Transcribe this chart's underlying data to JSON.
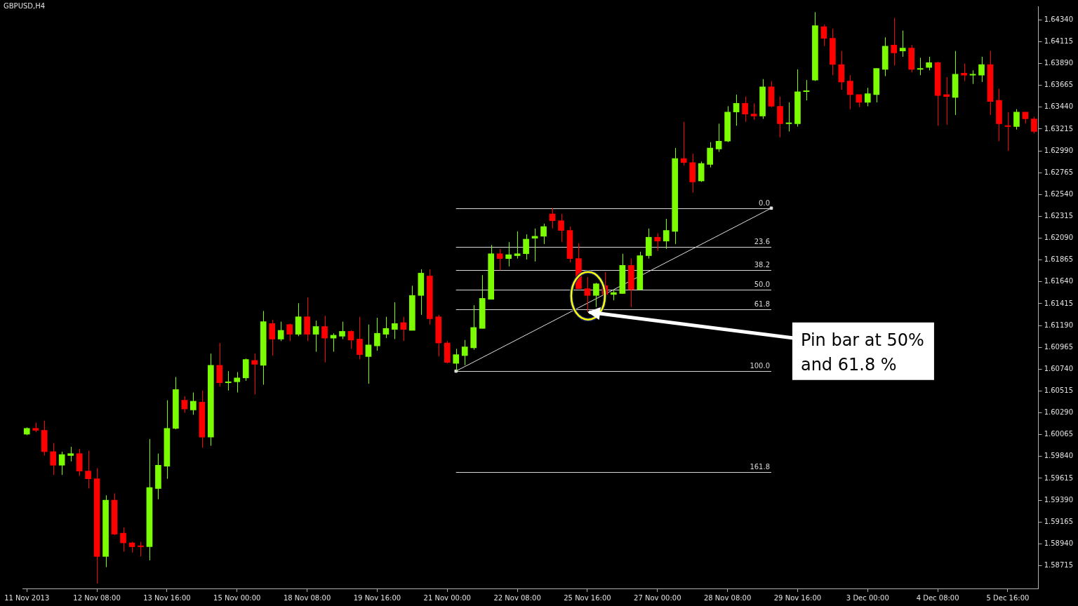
{
  "chart_data": {
    "type": "candlestick",
    "title": "GBPUSD,H4",
    "categories": [
      "11 Nov 2013",
      null,
      null,
      null,
      null,
      null,
      null,
      null,
      "12 Nov 08:00",
      null,
      null,
      null,
      null,
      null,
      null,
      null,
      "13 Nov 16:00",
      null,
      null,
      null,
      null,
      null,
      null,
      null,
      "15 Nov 00:00",
      null,
      null,
      null,
      null,
      null,
      null,
      null,
      "18 Nov 08:00",
      null,
      null,
      null,
      null,
      null,
      null,
      null,
      "19 Nov 16:00",
      null,
      null,
      null,
      null,
      null,
      null,
      null,
      "21 Nov 00:00",
      null,
      null,
      null,
      null,
      null,
      null,
      null,
      "22 Nov 08:00",
      null,
      null,
      null,
      null,
      null,
      null,
      null,
      "25 Nov 16:00",
      null,
      null,
      null,
      null,
      null,
      null,
      null,
      "27 Nov 00:00",
      null,
      null,
      null,
      null,
      null,
      null,
      null,
      "28 Nov 08:00",
      null,
      null,
      null,
      null,
      null,
      null,
      null,
      "29 Nov 16:00",
      null,
      null,
      null,
      null,
      null,
      null,
      null,
      "3 Dec 00:00",
      null,
      null,
      null,
      null,
      null,
      null,
      null,
      "4 Dec 08:00",
      null,
      null,
      null,
      null,
      null,
      null,
      null,
      "5 Dec 16:00",
      null,
      null,
      null
    ],
    "ohlc": [
      [
        1.6007,
        1.6014,
        1.6006,
        1.6013
      ],
      [
        1.6013,
        1.6019,
        1.6009,
        1.6011
      ],
      [
        1.6011,
        1.6021,
        1.5985,
        1.5989
      ],
      [
        1.5989,
        1.5998,
        1.5965,
        1.5975
      ],
      [
        1.5975,
        1.5989,
        1.5965,
        1.5986
      ],
      [
        1.5985,
        1.5994,
        1.5979,
        1.5987
      ],
      [
        1.5987,
        1.5992,
        1.5964,
        1.5969
      ],
      [
        1.5969,
        1.599,
        1.5951,
        1.5961
      ],
      [
        1.5961,
        1.5972,
        1.5853,
        1.5881
      ],
      [
        1.5881,
        1.5944,
        1.587,
        1.5939
      ],
      [
        1.5939,
        1.5946,
        1.5903,
        1.5904
      ],
      [
        1.5905,
        1.5911,
        1.5886,
        1.5895
      ],
      [
        1.5895,
        1.5896,
        1.5885,
        1.5891
      ],
      [
        1.5892,
        1.5896,
        1.5881,
        1.5891
      ],
      [
        1.5891,
        1.6002,
        1.5877,
        1.5952
      ],
      [
        1.5951,
        1.5987,
        1.594,
        1.5975
      ],
      [
        1.5974,
        1.6042,
        1.5961,
        1.6013
      ],
      [
        1.6013,
        1.6066,
        1.6012,
        1.6053
      ],
      [
        1.6042,
        1.6046,
        1.6029,
        1.6033
      ],
      [
        1.6032,
        1.605,
        1.6027,
        1.6041
      ],
      [
        1.604,
        1.6052,
        1.5993,
        1.6004
      ],
      [
        1.6004,
        1.609,
        1.5995,
        1.6078
      ],
      [
        1.6078,
        1.6101,
        1.6056,
        1.606
      ],
      [
        1.606,
        1.6072,
        1.6052,
        1.6061
      ],
      [
        1.6061,
        1.6071,
        1.605,
        1.6065
      ],
      [
        1.6065,
        1.6085,
        1.6062,
        1.6084
      ],
      [
        1.6083,
        1.609,
        1.6048,
        1.6079
      ],
      [
        1.6078,
        1.6134,
        1.6058,
        1.6123
      ],
      [
        1.6121,
        1.6125,
        1.6088,
        1.6105
      ],
      [
        1.6105,
        1.6123,
        1.6103,
        1.6114
      ],
      [
        1.612,
        1.6121,
        1.6103,
        1.611
      ],
      [
        1.611,
        1.6142,
        1.6108,
        1.6128
      ],
      [
        1.6128,
        1.6148,
        1.6103,
        1.611
      ],
      [
        1.611,
        1.6124,
        1.6092,
        1.6118
      ],
      [
        1.6118,
        1.6129,
        1.6081,
        1.6106
      ],
      [
        1.6106,
        1.6111,
        1.6092,
        1.6109
      ],
      [
        1.6108,
        1.6123,
        1.6105,
        1.6113
      ],
      [
        1.6113,
        1.6114,
        1.6095,
        1.6104
      ],
      [
        1.6105,
        1.6128,
        1.6084,
        1.6089
      ],
      [
        1.6087,
        1.612,
        1.6059,
        1.6099
      ],
      [
        1.6098,
        1.6127,
        1.6093,
        1.6111
      ],
      [
        1.611,
        1.6128,
        1.6106,
        1.6116
      ],
      [
        1.6115,
        1.6143,
        1.6105,
        1.6121
      ],
      [
        1.6122,
        1.6128,
        1.6103,
        1.6115
      ],
      [
        1.6114,
        1.616,
        1.6114,
        1.615
      ],
      [
        1.615,
        1.6177,
        1.613,
        1.6173
      ],
      [
        1.617,
        1.6177,
        1.612,
        1.6126
      ],
      [
        1.6128,
        1.613,
        1.6087,
        1.6101
      ],
      [
        1.6101,
        1.6103,
        1.608,
        1.6081
      ],
      [
        1.608,
        1.6095,
        1.6072,
        1.6089
      ],
      [
        1.6088,
        1.6104,
        1.6078,
        1.6097
      ],
      [
        1.6096,
        1.614,
        1.6094,
        1.6117
      ],
      [
        1.6116,
        1.6171,
        1.6116,
        1.6147
      ],
      [
        1.6146,
        1.6202,
        1.6146,
        1.6193
      ],
      [
        1.6193,
        1.6198,
        1.6176,
        1.6188
      ],
      [
        1.6188,
        1.6205,
        1.618,
        1.6192
      ],
      [
        1.6191,
        1.6216,
        1.6188,
        1.6193
      ],
      [
        1.6193,
        1.6213,
        1.6187,
        1.6208
      ],
      [
        1.6209,
        1.6219,
        1.6185,
        1.6211
      ],
      [
        1.6211,
        1.6224,
        1.6203,
        1.6221
      ],
      [
        1.6234,
        1.624,
        1.6219,
        1.6227
      ],
      [
        1.6227,
        1.6234,
        1.6205,
        1.6217
      ],
      [
        1.6217,
        1.6221,
        1.6184,
        1.6188
      ],
      [
        1.6188,
        1.6204,
        1.6157,
        1.6157
      ],
      [
        1.6157,
        1.6169,
        1.6133,
        1.615
      ],
      [
        1.615,
        1.6163,
        1.6138,
        1.6162
      ],
      [
        1.616,
        1.6174,
        1.6151,
        1.6151
      ],
      [
        1.6151,
        1.6156,
        1.6145,
        1.6153
      ],
      [
        1.6152,
        1.6193,
        1.6152,
        1.6181
      ],
      [
        1.6181,
        1.6188,
        1.6138,
        1.6156
      ],
      [
        1.6156,
        1.6195,
        1.6156,
        1.6191
      ],
      [
        1.6191,
        1.6219,
        1.6188,
        1.621
      ],
      [
        1.621,
        1.6214,
        1.6196,
        1.6206
      ],
      [
        1.6206,
        1.6229,
        1.6198,
        1.6217
      ],
      [
        1.6216,
        1.6302,
        1.6203,
        1.6291
      ],
      [
        1.6291,
        1.6329,
        1.6284,
        1.6287
      ],
      [
        1.6287,
        1.6296,
        1.6256,
        1.6267
      ],
      [
        1.6268,
        1.6288,
        1.6267,
        1.6286
      ],
      [
        1.6285,
        1.6308,
        1.6282,
        1.6302
      ],
      [
        1.6301,
        1.6327,
        1.6298,
        1.6309
      ],
      [
        1.6309,
        1.6345,
        1.6308,
        1.6339
      ],
      [
        1.6339,
        1.6357,
        1.6325,
        1.6348
      ],
      [
        1.6348,
        1.6355,
        1.6329,
        1.6337
      ],
      [
        1.6337,
        1.6348,
        1.6331,
        1.6335
      ],
      [
        1.6335,
        1.6373,
        1.6332,
        1.6365
      ],
      [
        1.6365,
        1.6371,
        1.6344,
        1.6345
      ],
      [
        1.6345,
        1.6355,
        1.6313,
        1.6327
      ],
      [
        1.6327,
        1.6349,
        1.6319,
        1.6328
      ],
      [
        1.6327,
        1.6383,
        1.6324,
        1.636
      ],
      [
        1.636,
        1.6372,
        1.6351,
        1.6361
      ],
      [
        1.6372,
        1.6442,
        1.6371,
        1.6428
      ],
      [
        1.6427,
        1.6429,
        1.6407,
        1.6415
      ],
      [
        1.6415,
        1.6425,
        1.6377,
        1.6388
      ],
      [
        1.6388,
        1.6402,
        1.6362,
        1.637
      ],
      [
        1.6371,
        1.6377,
        1.6342,
        1.6357
      ],
      [
        1.6357,
        1.6357,
        1.6344,
        1.6349
      ],
      [
        1.6349,
        1.6364,
        1.6345,
        1.6358
      ],
      [
        1.6357,
        1.6384,
        1.6349,
        1.6384
      ],
      [
        1.6383,
        1.6416,
        1.6376,
        1.6407
      ],
      [
        1.6408,
        1.6436,
        1.6387,
        1.64
      ],
      [
        1.6402,
        1.6423,
        1.6396,
        1.6405
      ],
      [
        1.6405,
        1.6408,
        1.638,
        1.6383
      ],
      [
        1.6383,
        1.6395,
        1.6377,
        1.6384
      ],
      [
        1.6385,
        1.6396,
        1.6382,
        1.639
      ],
      [
        1.639,
        1.6391,
        1.6325,
        1.6356
      ],
      [
        1.6357,
        1.6375,
        1.6326,
        1.6355
      ],
      [
        1.6354,
        1.6402,
        1.6336,
        1.6378
      ],
      [
        1.6379,
        1.6389,
        1.6371,
        1.6377
      ],
      [
        1.6377,
        1.6382,
        1.6368,
        1.6378
      ],
      [
        1.6377,
        1.6396,
        1.637,
        1.6388
      ],
      [
        1.6388,
        1.6402,
        1.6336,
        1.635
      ],
      [
        1.6351,
        1.6363,
        1.6309,
        1.6327
      ],
      [
        1.6325,
        1.6339,
        1.6299,
        1.6324
      ],
      [
        1.6324,
        1.6342,
        1.6321,
        1.6339
      ],
      [
        1.6339,
        1.6339,
        1.6327,
        1.6332
      ],
      [
        1.6332,
        1.6334,
        1.6317,
        1.6319
      ]
    ],
    "colors": [
      "#7cfc00",
      "#ff0000",
      "#ff0000",
      "#ff0000",
      "#7cfc00",
      "#7cfc00",
      "#ff0000",
      "#ff0000",
      "#ff0000",
      "#7cfc00",
      "#ff0000",
      "#ff0000",
      "#ff0000",
      "#ff0000",
      "#7cfc00",
      "#7cfc00",
      "#7cfc00",
      "#7cfc00",
      "#ff0000",
      "#7cfc00",
      "#ff0000",
      "#7cfc00",
      "#ff0000",
      "#7cfc00",
      "#7cfc00",
      "#7cfc00",
      "#ff0000",
      "#7cfc00",
      "#ff0000",
      "#7cfc00",
      "#ff0000",
      "#7cfc00",
      "#ff0000",
      "#7cfc00",
      "#ff0000",
      "#7cfc00",
      "#7cfc00",
      "#ff0000",
      "#ff0000",
      "#7cfc00",
      "#7cfc00",
      "#7cfc00",
      "#7cfc00",
      "#ff0000",
      "#7cfc00",
      "#7cfc00",
      "#ff0000",
      "#ff0000",
      "#ff0000",
      "#7cfc00",
      "#7cfc00",
      "#7cfc00",
      "#7cfc00",
      "#7cfc00",
      "#ff0000",
      "#7cfc00",
      "#7cfc00",
      "#7cfc00",
      "#7cfc00",
      "#7cfc00",
      "#ff0000",
      "#ff0000",
      "#ff0000",
      "#ff0000",
      "#ff0000",
      "#7cfc00",
      "#ff0000",
      "#7cfc00",
      "#7cfc00",
      "#ff0000",
      "#7cfc00",
      "#7cfc00",
      "#ff0000",
      "#7cfc00",
      "#7cfc00",
      "#ff0000",
      "#ff0000",
      "#7cfc00",
      "#7cfc00",
      "#7cfc00",
      "#7cfc00",
      "#7cfc00",
      "#ff0000",
      "#ff0000",
      "#7cfc00",
      "#ff0000",
      "#ff0000",
      "#7cfc00",
      "#7cfc00",
      "#7cfc00",
      "#7cfc00",
      "#ff0000",
      "#ff0000",
      "#ff0000",
      "#ff0000",
      "#ff0000",
      "#7cfc00",
      "#7cfc00",
      "#7cfc00",
      "#ff0000",
      "#7cfc00",
      "#ff0000",
      "#7cfc00",
      "#7cfc00",
      "#ff0000",
      "#ff0000",
      "#7cfc00",
      "#ff0000",
      "#7cfc00",
      "#7cfc00",
      "#ff0000",
      "#ff0000",
      "#ff0000",
      "#7cfc00",
      "#ff0000",
      "#ff0000"
    ],
    "series": [
      {
        "type": "line",
        "color": "#e0e0e0",
        "marker": "square",
        "values": [
          null,
          null,
          null,
          null,
          null,
          null,
          null,
          null,
          null,
          null,
          null,
          null,
          null,
          null,
          null,
          null,
          null,
          null,
          null,
          null,
          null,
          null,
          null,
          null,
          null,
          null,
          null,
          null,
          null,
          null,
          null,
          null,
          null,
          null,
          null,
          null,
          null,
          null,
          null,
          null,
          null,
          null,
          null,
          null,
          null,
          null,
          null,
          null,
          null,
          1.6072,
          null,
          null,
          null,
          null,
          null,
          null,
          null,
          null,
          null,
          null,
          null,
          null,
          null,
          null,
          null,
          null,
          null,
          null,
          null,
          null,
          null,
          null,
          null,
          null,
          null,
          null,
          null,
          null,
          null,
          null,
          null,
          null,
          null,
          null,
          null,
          1.624,
          null,
          null,
          null,
          null,
          null,
          null,
          null,
          null,
          null,
          null,
          null,
          null,
          null,
          null,
          null,
          null,
          null,
          null,
          null,
          null,
          null,
          null,
          null,
          null,
          null,
          null,
          null,
          null,
          null,
          null
        ]
      }
    ],
    "ylim": [
      1.5848,
      1.6448
    ],
    "yticks": [
      1.58715,
      {
        "value": 1.5894,
        "label": "1.58940"
      },
      1.59165,
      {
        "value": 1.5939,
        "label": "1.59390"
      },
      1.59615,
      {
        "value": 1.5984,
        "label": "1.59840"
      },
      1.60065,
      {
        "value": 1.6029,
        "label": "1.60290"
      },
      1.60515,
      {
        "value": 1.6074,
        "label": "1.60740"
      },
      1.60965,
      {
        "value": 1.6119,
        "label": "1.61190"
      },
      1.61415,
      {
        "value": 1.6164,
        "label": "1.61640"
      },
      1.61865,
      {
        "value": 1.6209,
        "label": "1.62090"
      },
      1.62315,
      {
        "value": 1.6254,
        "label": "1.62540"
      },
      1.62765,
      {
        "value": 1.6299,
        "label": "1.62990"
      },
      1.63215,
      {
        "value": 1.6344,
        "label": "1.63440"
      },
      1.63665,
      {
        "value": 1.6389,
        "label": "1.63890"
      },
      1.64115,
      {
        "value": 1.6434,
        "label": "1.64340"
      }
    ],
    "ref_lines": [
      {
        "axis": "y",
        "value": 1.624,
        "color": "#d8d8d8"
      },
      {
        "axis": "y",
        "value": 1.62,
        "color": "#d8d8d8"
      },
      {
        "axis": "y",
        "value": 1.6176,
        "color": "#d8d8d8"
      },
      {
        "axis": "y",
        "value": 1.6156,
        "color": "#d8d8d8"
      },
      {
        "axis": "y",
        "value": 1.6136,
        "color": "#d8d8d8"
      },
      {
        "axis": "y",
        "value": 1.6072,
        "color": "#d8d8d8"
      },
      {
        "axis": "y",
        "value": 1.5968,
        "color": "#d8d8d8"
      }
    ],
    "annotations": [
      {
        "text": "0.0",
        "y": 1.624
      },
      {
        "text": "23.6",
        "y": 1.62
      },
      {
        "text": "38.2",
        "y": 1.6176
      },
      {
        "text": "50.0",
        "y": 1.6156
      },
      {
        "text": "61.8",
        "y": 1.6136
      },
      {
        "text": "100.0",
        "y": 1.6072
      },
      {
        "text": "161.8",
        "y": 1.5968
      },
      {
        "text": "Pin bar at 50%\nand 61.8 %",
        "x": "25 Nov 16:00",
        "y": 1.6133
      }
    ]
  }
}
